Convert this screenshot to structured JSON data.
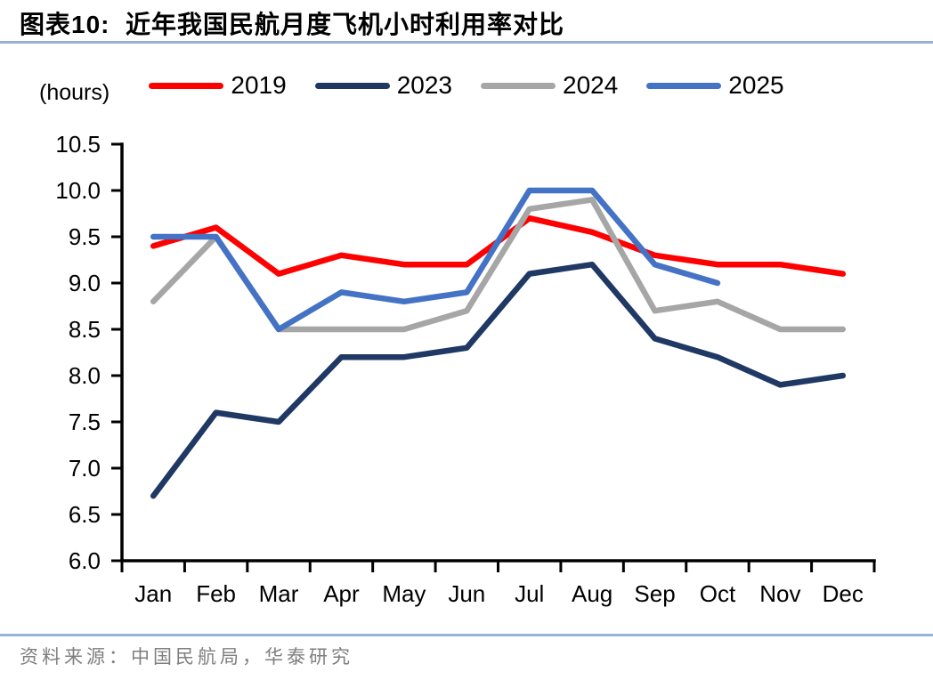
{
  "header": {
    "title": "图表10:  近年我国民航月度飞机小时利用率对比"
  },
  "chart_data": {
    "type": "line",
    "title": "近年我国民航月度飞机小时利用率对比",
    "unit_label": "(hours)",
    "xlabel": "",
    "ylabel": "hours",
    "categories": [
      "Jan",
      "Feb",
      "Mar",
      "Apr",
      "May",
      "Jun",
      "Jul",
      "Aug",
      "Sep",
      "Oct",
      "Nov",
      "Dec"
    ],
    "ylim": [
      6.0,
      10.5
    ],
    "ytick_step": 0.5,
    "grid": false,
    "legend_position": "top",
    "series": [
      {
        "name": "2019",
        "color": "#FF0000",
        "values": [
          9.4,
          9.6,
          9.1,
          9.3,
          9.2,
          9.2,
          9.7,
          9.55,
          9.3,
          9.2,
          9.2,
          9.1
        ]
      },
      {
        "name": "2023",
        "color": "#1F3864",
        "values": [
          6.7,
          7.6,
          7.5,
          8.2,
          8.2,
          8.3,
          9.1,
          9.2,
          8.4,
          8.2,
          7.9,
          8.0
        ]
      },
      {
        "name": "2024",
        "color": "#A6A6A6",
        "values": [
          8.8,
          9.5,
          8.5,
          8.5,
          8.5,
          8.7,
          9.8,
          9.9,
          8.7,
          8.8,
          8.5,
          8.5
        ]
      },
      {
        "name": "2025",
        "color": "#4472C4",
        "values": [
          9.5,
          9.5,
          8.5,
          8.9,
          8.8,
          8.9,
          10.0,
          10.0,
          9.2,
          9.0,
          null,
          null
        ]
      }
    ]
  },
  "footer": {
    "source": "资料来源：中国民航局，华泰研究"
  },
  "colors": {
    "accent_rule": "#95B3D7",
    "source_text": "#7F7F7F",
    "axis": "#000000"
  }
}
